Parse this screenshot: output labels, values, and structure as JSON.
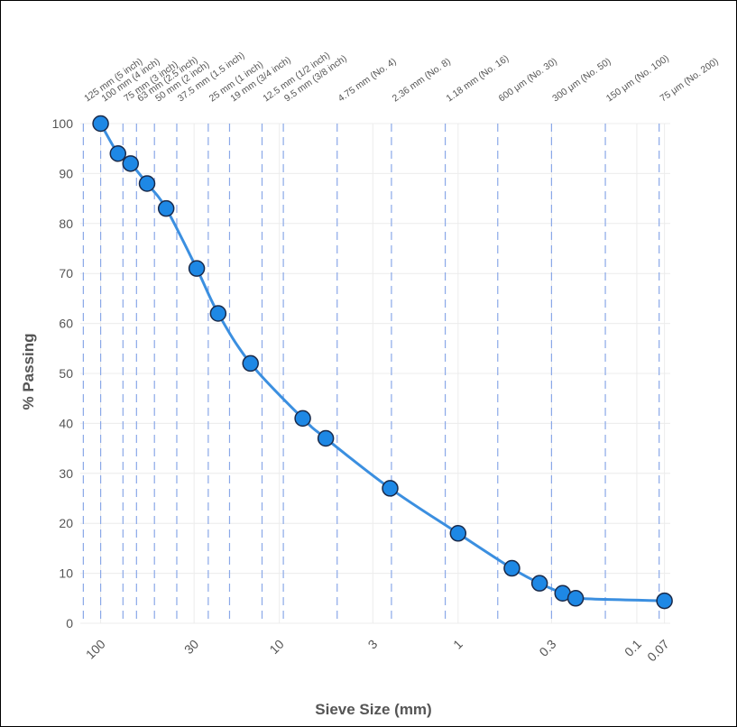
{
  "chart_data": {
    "type": "line",
    "xlabel": "Sieve Size (mm)",
    "ylabel": "% Passing",
    "x_scale": "log",
    "x_reversed": true,
    "xlim": [
      130,
      0.065
    ],
    "ylim": [
      0,
      100
    ],
    "y_ticks": [
      0,
      10,
      20,
      30,
      40,
      50,
      60,
      70,
      80,
      90,
      100
    ],
    "x_ticks": [
      {
        "value": 100,
        "label": "100"
      },
      {
        "value": 30,
        "label": "30"
      },
      {
        "value": 10,
        "label": "10"
      },
      {
        "value": 3,
        "label": "3"
      },
      {
        "value": 1,
        "label": "1"
      },
      {
        "value": 0.3,
        "label": "0.3"
      },
      {
        "value": 0.1,
        "label": "0.1"
      },
      {
        "value": 0.07,
        "label": "0.07"
      }
    ],
    "sieves": [
      {
        "size": 125,
        "label": "125 mm (5 inch)"
      },
      {
        "size": 100,
        "label": "100 mm (4 inch)"
      },
      {
        "size": 75,
        "label": "75 mm (3 inch)"
      },
      {
        "size": 63,
        "label": "63 mm (2.5 inch)"
      },
      {
        "size": 50,
        "label": "50 mm (2 inch)"
      },
      {
        "size": 37.5,
        "label": "37.5 mm (1.5 inch)"
      },
      {
        "size": 25,
        "label": "25 mm (1 inch)"
      },
      {
        "size": 19,
        "label": "19 mm (3/4 inch)"
      },
      {
        "size": 12.5,
        "label": "12.5 mm (1/2 inch)"
      },
      {
        "size": 9.5,
        "label": "9.5 mm (3/8 inch)"
      },
      {
        "size": 4.75,
        "label": "4.75 mm (No. 4)"
      },
      {
        "size": 2.36,
        "label": "2.36 mm (No. 8)"
      },
      {
        "size": 1.18,
        "label": "1.18 mm (No. 16)"
      },
      {
        "size": 0.6,
        "label": "600 μm (No. 30)"
      },
      {
        "size": 0.3,
        "label": "300 μm (No. 50)"
      },
      {
        "size": 0.15,
        "label": "150 μm (No. 100)"
      },
      {
        "size": 0.075,
        "label": "75 μm (No. 200)"
      }
    ],
    "series": [
      {
        "points": [
          {
            "x": 100,
            "y": 100
          },
          {
            "x": 80,
            "y": 94
          },
          {
            "x": 68,
            "y": 92
          },
          {
            "x": 55,
            "y": 88
          },
          {
            "x": 43,
            "y": 83
          },
          {
            "x": 29,
            "y": 71
          },
          {
            "x": 22,
            "y": 62
          },
          {
            "x": 14.5,
            "y": 52
          },
          {
            "x": 7.4,
            "y": 41
          },
          {
            "x": 5.5,
            "y": 37
          },
          {
            "x": 2.4,
            "y": 27
          },
          {
            "x": 1.0,
            "y": 18
          },
          {
            "x": 0.5,
            "y": 11
          },
          {
            "x": 0.35,
            "y": 8
          },
          {
            "x": 0.26,
            "y": 6
          },
          {
            "x": 0.22,
            "y": 5
          },
          {
            "x": 0.07,
            "y": 4.5
          }
        ]
      }
    ],
    "colors": {
      "line": "#3b8fe0",
      "point": "#1e88e5",
      "sieve_line": "#8aa8e8",
      "grid": "#ececec"
    }
  }
}
